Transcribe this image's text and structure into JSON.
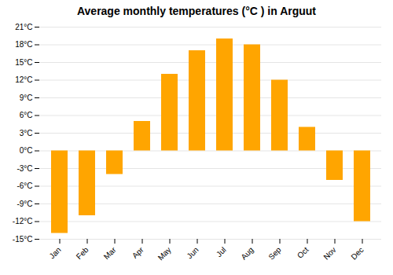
{
  "chart_data": {
    "type": "bar",
    "title": "Average monthly temperatures (°C ) in Arguut",
    "categories": [
      "Jan",
      "Feb",
      "Mar",
      "Apr",
      "May",
      "Jun",
      "Jul",
      "Aug",
      "Sep",
      "Oct",
      "Nov",
      "Dec"
    ],
    "values": [
      -14,
      -11,
      -4,
      5,
      13,
      17,
      19,
      18,
      12,
      4,
      -5,
      -12
    ],
    "color": "#FFA500",
    "ylim": [
      -15,
      21
    ],
    "yticks": [
      {
        "value": -15,
        "label": "-15°C"
      },
      {
        "value": -12,
        "label": "-12°C"
      },
      {
        "value": -9,
        "label": "-9°C"
      },
      {
        "value": -6,
        "label": "-6°C"
      },
      {
        "value": -3,
        "label": "-3°C"
      },
      {
        "value": 0,
        "label": "0°C"
      },
      {
        "value": 3,
        "label": "3°C"
      },
      {
        "value": 6,
        "label": "6°C"
      },
      {
        "value": 9,
        "label": "9°C"
      },
      {
        "value": 12,
        "label": "12°C"
      },
      {
        "value": 15,
        "label": "15°C"
      },
      {
        "value": 18,
        "label": "18°C"
      },
      {
        "value": 21,
        "label": "21°C"
      }
    ],
    "grid": true
  }
}
